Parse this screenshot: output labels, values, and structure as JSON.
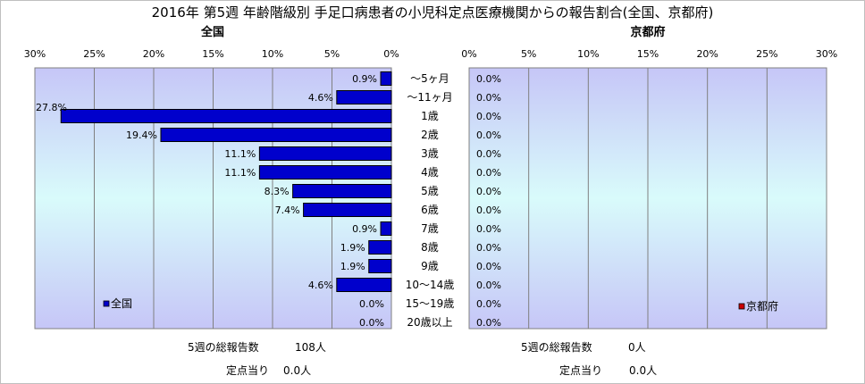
{
  "title": "2016年 第5週 年齢階級別 手足口病患者の小児科定点医療機関からの報告割合(全国、京都府)",
  "chart_data": [
    {
      "type": "bar",
      "orientation": "horizontal",
      "subtitle": "全国",
      "legend": "全国",
      "legend_position": "bottom-left",
      "x_direction": "reversed",
      "xlim": [
        0,
        30
      ],
      "xticks": [
        "0%",
        "5%",
        "10%",
        "15%",
        "20%",
        "25%",
        "30%"
      ],
      "grid": true,
      "bar_color": "#0000cc",
      "categories": [
        "～5ヶ月",
        "～11ヶ月",
        "1歳",
        "2歳",
        "3歳",
        "4歳",
        "5歳",
        "6歳",
        "7歳",
        "8歳",
        "9歳",
        "10～14歳",
        "15～19歳",
        "20歳以上"
      ],
      "values": [
        0.9,
        4.6,
        27.8,
        19.4,
        11.1,
        11.1,
        8.3,
        7.4,
        0.9,
        1.9,
        1.9,
        4.6,
        0.0,
        0.0
      ],
      "labels": [
        "0.9%",
        "4.6%",
        "27.8%",
        "19.4%",
        "11.1%",
        "11.1%",
        "8.3%",
        "7.4%",
        "0.9%",
        "1.9%",
        "1.9%",
        "4.6%",
        "0.0%",
        "0.0%"
      ],
      "footer": {
        "total_label": "5週の総報告数",
        "total_value": "108人",
        "per_label": "定点当り",
        "per_value": "0.0人"
      }
    },
    {
      "type": "bar",
      "orientation": "horizontal",
      "subtitle": "京都府",
      "legend": "京都府",
      "legend_position": "bottom-right",
      "x_direction": "normal",
      "xlim": [
        0,
        30
      ],
      "xticks": [
        "0%",
        "5%",
        "10%",
        "15%",
        "20%",
        "25%",
        "30%"
      ],
      "grid": true,
      "bar_color": "#cc0000",
      "categories": [
        "～5ヶ月",
        "～11ヶ月",
        "1歳",
        "2歳",
        "3歳",
        "4歳",
        "5歳",
        "6歳",
        "7歳",
        "8歳",
        "9歳",
        "10～14歳",
        "15～19歳",
        "20歳以上"
      ],
      "values": [
        0,
        0,
        0,
        0,
        0,
        0,
        0,
        0,
        0,
        0,
        0,
        0,
        0,
        0
      ],
      "labels": [
        "0.0%",
        "0.0%",
        "0.0%",
        "0.0%",
        "0.0%",
        "0.0%",
        "0.0%",
        "0.0%",
        "0.0%",
        "0.0%",
        "0.0%",
        "0.0%",
        "0.0%",
        "0.0%"
      ],
      "footer": {
        "total_label": "5週の総報告数",
        "total_value": "0人",
        "per_label": "定点当り",
        "per_value": "0.0人"
      }
    }
  ]
}
